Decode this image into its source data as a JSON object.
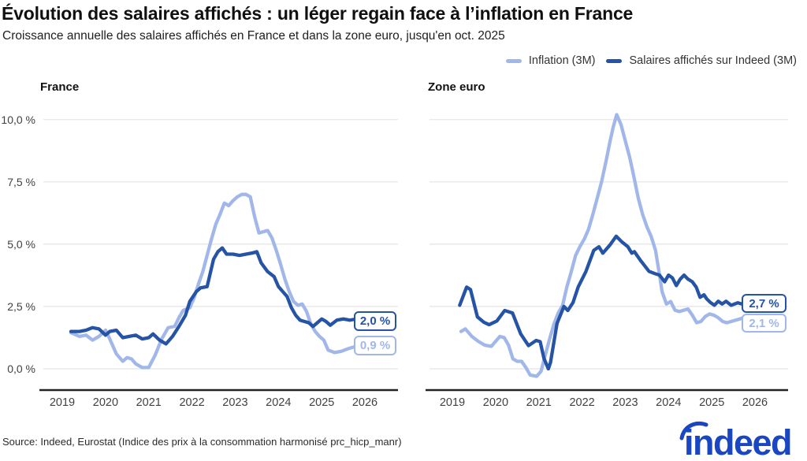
{
  "header": {
    "title": "Évolution des salaires affichés : un léger regain face à l’inflation en France",
    "subtitle": "Croissance annuelle des salaires affichés en France et dans la zone euro, jusqu'en oct. 2025"
  },
  "colors": {
    "light": "#a2b7e9",
    "dark": "#2553a5",
    "grid": "#e4e4e7",
    "axis": "#222222",
    "tick": "#414141",
    "logo": "#1a46c2"
  },
  "legend": {
    "items": [
      {
        "label": "Inflation (3M)",
        "color_key": "light"
      },
      {
        "label": "Salaires affichés sur Indeed (3M)",
        "color_key": "dark"
      }
    ]
  },
  "y_axis": {
    "ticks": [
      {
        "label": "10,0 %",
        "value": 10
      },
      {
        "label": "7,5 %",
        "value": 7.5
      },
      {
        "label": "5,0 %",
        "value": 5
      },
      {
        "label": "2,5 %",
        "value": 2.5
      },
      {
        "label": "0,0 %",
        "value": 0
      }
    ]
  },
  "chart_data": [
    {
      "type": "line",
      "title": "France",
      "x_ticks": [
        "2019",
        "2020",
        "2021",
        "2022",
        "2023",
        "2024",
        "2025",
        "2026"
      ],
      "ylim": [
        -0.8,
        10.8
      ],
      "grid": true,
      "legend_position": "top-right",
      "series": [
        {
          "name": "Inflation (3M)",
          "color_key": "light",
          "end_label": "0,9 %",
          "x": [
            2019.2,
            2019.4,
            2019.55,
            2019.7,
            2019.85,
            2020.0,
            2020.1,
            2020.25,
            2020.4,
            2020.5,
            2020.6,
            2020.7,
            2020.85,
            2021.0,
            2021.15,
            2021.3,
            2021.45,
            2021.6,
            2021.7,
            2021.8,
            2021.95,
            2022.05,
            2022.15,
            2022.25,
            2022.35,
            2022.45,
            2022.55,
            2022.65,
            2022.75,
            2022.85,
            2022.95,
            2023.05,
            2023.15,
            2023.25,
            2023.35,
            2023.45,
            2023.55,
            2023.65,
            2023.75,
            2023.85,
            2023.95,
            2024.05,
            2024.15,
            2024.25,
            2024.35,
            2024.45,
            2024.55,
            2024.65,
            2024.75,
            2024.85,
            2024.95,
            2025.05,
            2025.15,
            2025.3,
            2025.45,
            2025.6,
            2025.79
          ],
          "values": [
            1.45,
            1.3,
            1.35,
            1.15,
            1.3,
            1.55,
            1.2,
            0.6,
            0.3,
            0.45,
            0.4,
            0.2,
            0.05,
            0.05,
            0.55,
            1.2,
            1.65,
            1.7,
            2.05,
            2.35,
            2.45,
            2.85,
            3.4,
            3.9,
            4.55,
            5.2,
            5.8,
            6.2,
            6.65,
            6.55,
            6.75,
            6.9,
            7.0,
            7.0,
            6.9,
            6.1,
            5.45,
            5.5,
            5.55,
            5.25,
            4.75,
            4.2,
            3.6,
            3.1,
            2.7,
            2.55,
            2.6,
            2.3,
            1.8,
            1.5,
            1.3,
            1.15,
            0.75,
            0.65,
            0.7,
            0.8,
            0.9
          ]
        },
        {
          "name": "Salaires affichés sur Indeed (3M)",
          "color_key": "dark",
          "end_label": "2,0 %",
          "x": [
            2019.2,
            2019.4,
            2019.55,
            2019.7,
            2019.85,
            2020.0,
            2020.1,
            2020.25,
            2020.4,
            2020.55,
            2020.7,
            2020.85,
            2021.0,
            2021.1,
            2021.25,
            2021.4,
            2021.55,
            2021.7,
            2021.85,
            2021.95,
            2022.1,
            2022.2,
            2022.35,
            2022.5,
            2022.6,
            2022.7,
            2022.8,
            2022.95,
            2023.1,
            2023.25,
            2023.4,
            2023.5,
            2023.6,
            2023.75,
            2023.9,
            2024.0,
            2024.1,
            2024.2,
            2024.3,
            2024.4,
            2024.5,
            2024.6,
            2024.7,
            2024.8,
            2024.9,
            2025.0,
            2025.1,
            2025.2,
            2025.35,
            2025.5,
            2025.65,
            2025.79
          ],
          "values": [
            1.5,
            1.5,
            1.55,
            1.65,
            1.6,
            1.35,
            1.5,
            1.55,
            1.25,
            1.3,
            1.35,
            1.2,
            1.25,
            1.4,
            1.15,
            1.0,
            1.3,
            1.7,
            2.15,
            2.7,
            3.1,
            3.25,
            3.3,
            4.4,
            4.7,
            4.85,
            4.6,
            4.6,
            4.55,
            4.6,
            4.65,
            4.7,
            4.25,
            3.9,
            3.7,
            3.3,
            3.1,
            2.9,
            2.45,
            2.15,
            1.95,
            1.9,
            1.85,
            1.7,
            1.85,
            2.0,
            1.9,
            1.75,
            1.95,
            2.0,
            1.95,
            2.0
          ]
        }
      ]
    },
    {
      "type": "line",
      "title": "Zone euro",
      "x_ticks": [
        "2019",
        "2020",
        "2021",
        "2022",
        "2023",
        "2024",
        "2025",
        "2026"
      ],
      "ylim": [
        -0.8,
        10.8
      ],
      "grid": true,
      "legend_position": "top-right",
      "series": [
        {
          "name": "Inflation (3M)",
          "color_key": "light",
          "end_label": "2,1 %",
          "x": [
            2019.2,
            2019.3,
            2019.45,
            2019.6,
            2019.75,
            2019.9,
            2020.0,
            2020.1,
            2020.2,
            2020.3,
            2020.4,
            2020.5,
            2020.6,
            2020.7,
            2020.8,
            2020.95,
            2021.05,
            2021.15,
            2021.25,
            2021.35,
            2021.45,
            2021.55,
            2021.65,
            2021.75,
            2021.85,
            2021.95,
            2022.05,
            2022.15,
            2022.25,
            2022.35,
            2022.45,
            2022.55,
            2022.65,
            2022.72,
            2022.8,
            2022.9,
            2023.0,
            2023.1,
            2023.2,
            2023.3,
            2023.4,
            2023.5,
            2023.6,
            2023.7,
            2023.78,
            2023.85,
            2023.95,
            2024.05,
            2024.15,
            2024.25,
            2024.35,
            2024.45,
            2024.55,
            2024.65,
            2024.75,
            2024.85,
            2024.95,
            2025.05,
            2025.15,
            2025.25,
            2025.35,
            2025.45,
            2025.55,
            2025.65,
            2025.79
          ],
          "values": [
            1.5,
            1.6,
            1.3,
            1.1,
            0.95,
            0.9,
            1.1,
            1.3,
            1.25,
            0.95,
            0.4,
            0.3,
            0.3,
            0.05,
            -0.25,
            -0.3,
            -0.1,
            0.55,
            1.2,
            1.8,
            2.25,
            2.55,
            3.3,
            3.9,
            4.55,
            4.9,
            5.2,
            5.6,
            6.2,
            6.85,
            7.5,
            8.3,
            9.15,
            9.7,
            10.2,
            9.8,
            9.15,
            8.5,
            7.7,
            6.85,
            6.2,
            5.7,
            5.3,
            4.75,
            3.9,
            3.1,
            2.6,
            2.7,
            2.35,
            2.3,
            2.35,
            2.4,
            2.15,
            1.85,
            1.9,
            2.1,
            2.2,
            2.15,
            2.05,
            1.9,
            1.85,
            1.9,
            1.95,
            2.0,
            2.1
          ]
        },
        {
          "name": "Salaires affichés sur Indeed (3M)",
          "color_key": "dark",
          "end_label": "2,7 %",
          "x": [
            2019.17,
            2019.33,
            2019.42,
            2019.58,
            2019.73,
            2019.85,
            2020.03,
            2020.21,
            2020.39,
            2020.58,
            2020.76,
            2020.94,
            2021.03,
            2021.12,
            2021.22,
            2021.27,
            2021.42,
            2021.58,
            2021.67,
            2021.79,
            2021.91,
            2022.09,
            2022.27,
            2022.39,
            2022.48,
            2022.64,
            2022.79,
            2022.91,
            2023.06,
            2023.15,
            2023.21,
            2023.36,
            2023.55,
            2023.7,
            2023.79,
            2023.91,
            2024.0,
            2024.09,
            2024.18,
            2024.27,
            2024.36,
            2024.45,
            2024.55,
            2024.64,
            2024.73,
            2024.82,
            2024.88,
            2024.97,
            2025.06,
            2025.15,
            2025.24,
            2025.33,
            2025.45,
            2025.6,
            2025.7,
            2025.79
          ],
          "values": [
            2.55,
            3.28,
            3.18,
            2.08,
            1.87,
            1.77,
            1.92,
            2.34,
            2.24,
            1.4,
            0.93,
            1.14,
            1.09,
            0.41,
            0.0,
            0.25,
            1.82,
            2.5,
            2.34,
            2.66,
            3.28,
            3.91,
            4.75,
            4.9,
            4.64,
            4.96,
            5.32,
            5.11,
            4.9,
            4.64,
            4.7,
            4.33,
            3.91,
            3.81,
            3.76,
            3.49,
            3.76,
            3.65,
            3.34,
            3.6,
            3.76,
            3.6,
            3.49,
            3.28,
            2.87,
            2.97,
            2.81,
            2.66,
            2.55,
            2.71,
            2.6,
            2.71,
            2.55,
            2.65,
            2.6,
            2.7
          ]
        }
      ]
    }
  ],
  "source": "Source: Indeed, Eurostat (Indice des prix à la consommation harmonisé prc_hicp_manr)",
  "logo_text": "indeed"
}
